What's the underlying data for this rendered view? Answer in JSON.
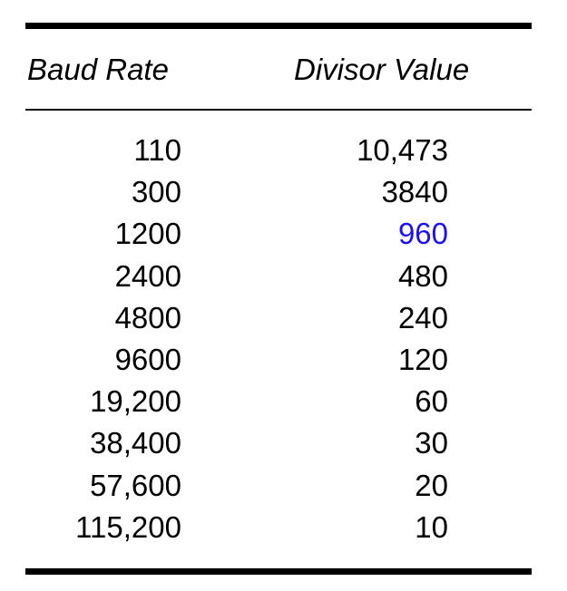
{
  "table": {
    "headers": {
      "baud_rate": "Baud Rate",
      "divisor_value": "Divisor Value"
    },
    "highlight_color": "#1a0fff",
    "rows": [
      {
        "baud": "110",
        "divisor": "10,473",
        "highlight": false
      },
      {
        "baud": "300",
        "divisor": "3840",
        "highlight": false
      },
      {
        "baud": "1200",
        "divisor": "960",
        "highlight": true
      },
      {
        "baud": "2400",
        "divisor": "480",
        "highlight": false
      },
      {
        "baud": "4800",
        "divisor": "240",
        "highlight": false
      },
      {
        "baud": "9600",
        "divisor": "120",
        "highlight": false
      },
      {
        "baud": "19,200",
        "divisor": "60",
        "highlight": false
      },
      {
        "baud": "38,400",
        "divisor": "30",
        "highlight": false
      },
      {
        "baud": "57,600",
        "divisor": "20",
        "highlight": false
      },
      {
        "baud": "115,200",
        "divisor": "10",
        "highlight": false
      }
    ]
  }
}
